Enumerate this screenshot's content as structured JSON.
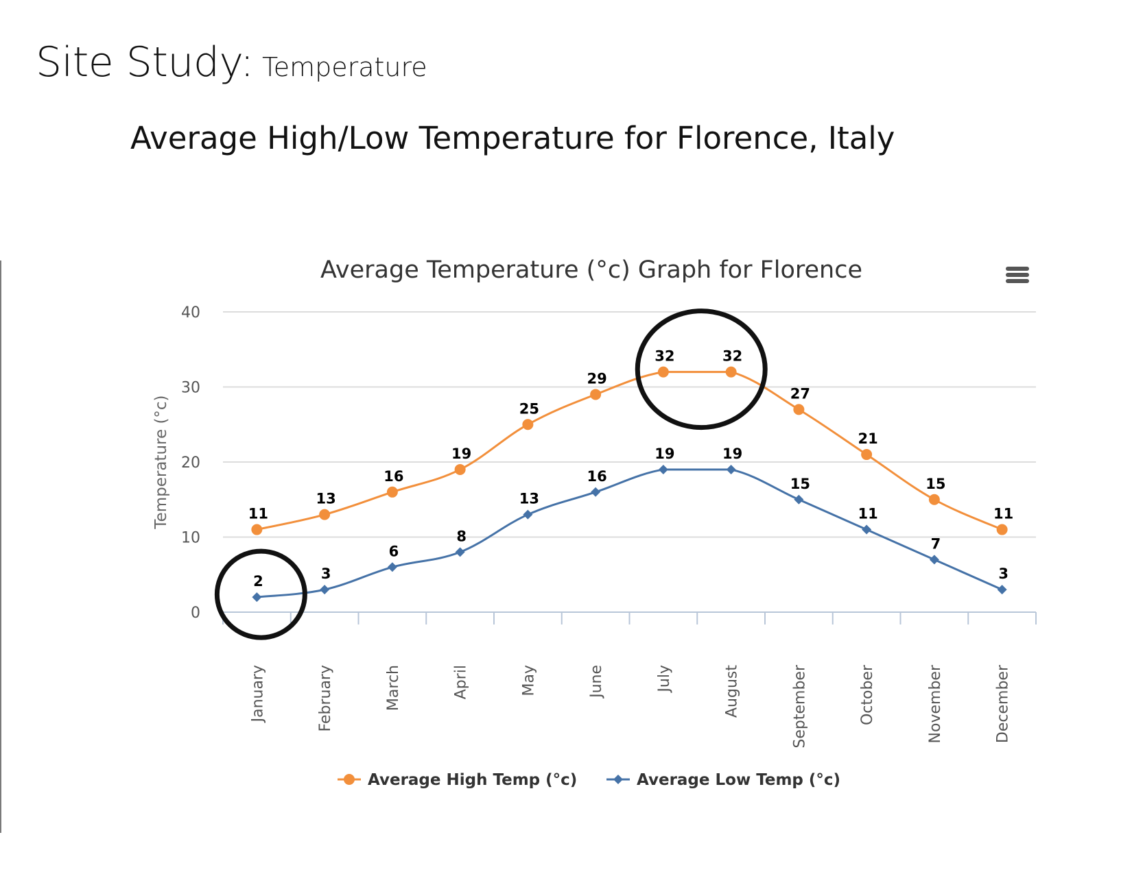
{
  "page": {
    "title_main": "Site Study:",
    "title_sub": " Temperature",
    "heading": "Average High/Low Temperature for Florence, Italy"
  },
  "chart_data": {
    "type": "line",
    "title": "Average Temperature (°c) Graph for Florence",
    "xlabel": "",
    "ylabel": "Temperature (°c)",
    "ylim": [
      0,
      40
    ],
    "yticks": [
      0,
      10,
      20,
      30,
      40
    ],
    "grid": true,
    "legend_position": "bottom-center",
    "categories": [
      "January",
      "February",
      "March",
      "April",
      "May",
      "June",
      "July",
      "August",
      "September",
      "October",
      "November",
      "December"
    ],
    "series": [
      {
        "name": "Average High Temp (°c)",
        "color": "#f28f3b",
        "marker": "circle",
        "values": [
          11,
          13,
          16,
          19,
          25,
          29,
          32,
          32,
          27,
          21,
          15,
          11
        ]
      },
      {
        "name": "Average Low Temp (°c)",
        "color": "#4572a7",
        "marker": "diamond",
        "values": [
          2,
          3,
          6,
          8,
          13,
          16,
          19,
          19,
          15,
          11,
          7,
          3
        ]
      }
    ],
    "annotations": [
      {
        "type": "circle",
        "around": [
          "July",
          "August"
        ],
        "series": "Average High Temp (°c)"
      },
      {
        "type": "circle",
        "around": [
          "January"
        ],
        "series": "Average Low Temp (°c)"
      }
    ]
  },
  "icons": {
    "menu": "hamburger-menu-icon"
  }
}
